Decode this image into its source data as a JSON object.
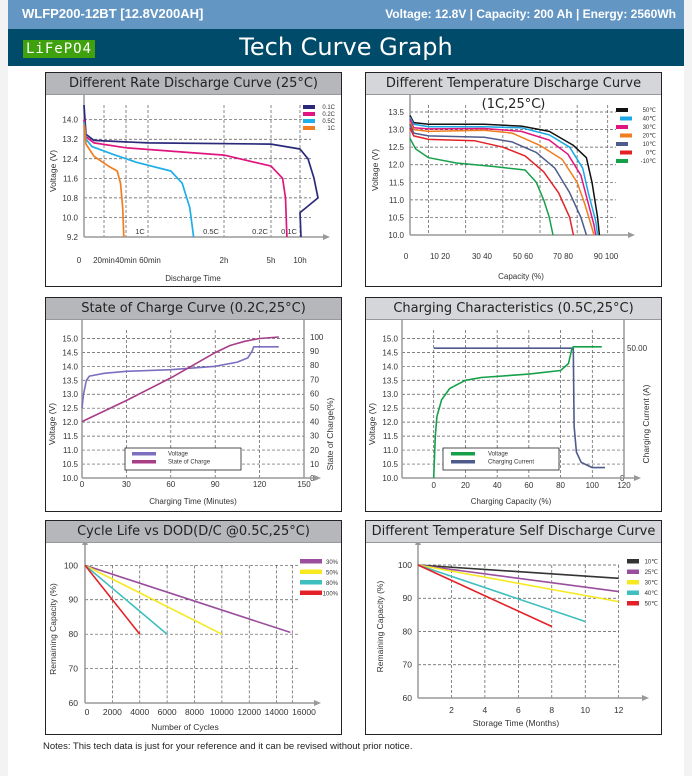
{
  "header": {
    "model": "WLFP200-12BT [12.8V200AH]",
    "specs": "Voltage: 12.8V |  Capacity: 200 Ah   |   Energy: 2560Wh",
    "badge": "LiFePO4",
    "title": "Tech Curve Graph"
  },
  "footer": {
    "note": "Notes: This tech data is just for your reference and it can be revised without prior notice."
  },
  "chart_data": [
    {
      "id": "rate",
      "type": "line",
      "title": "Different Rate Discharge Curve (25°C)",
      "xlabel": "Discharge Time",
      "ylabel": "Voltage (V)",
      "xticks": [
        "0",
        "20min",
        "40min",
        "60min",
        "2h",
        "5h",
        "10h"
      ],
      "yticks": [
        9.2,
        10.0,
        10.8,
        11.6,
        12.4,
        13.2,
        14.0
      ],
      "ylim": [
        9.2,
        14.6
      ],
      "grid": true,
      "legend": "top-right",
      "curve_labels": [
        "1C",
        "0.5C",
        "0.2C",
        "0.1C"
      ],
      "series": [
        {
          "name": "0.1C",
          "color": "#2b2a7a",
          "points": [
            [
              0,
              14.6
            ],
            [
              0.1,
              13.4
            ],
            [
              0.5,
              13.15
            ],
            [
              3,
              13.05
            ],
            [
              5,
              13.0
            ],
            [
              6,
              12.8
            ],
            [
              6.4,
              12.4
            ],
            [
              6.7,
              11.6
            ],
            [
              6.9,
              10.8
            ],
            [
              7.0,
              10.2
            ],
            [
              7.05,
              9.2
            ]
          ]
        },
        {
          "name": "0.2C",
          "color": "#e0157f",
          "points": [
            [
              0,
              14.0
            ],
            [
              0.1,
              13.3
            ],
            [
              0.5,
              13.05
            ],
            [
              2,
              12.85
            ],
            [
              4,
              12.55
            ],
            [
              5,
              12.1
            ],
            [
              5.4,
              11.6
            ],
            [
              5.5,
              10.8
            ],
            [
              5.55,
              9.2
            ]
          ]
        },
        {
          "name": "0.5C",
          "color": "#1eaee8",
          "points": [
            [
              0,
              13.9
            ],
            [
              0.1,
              13.2
            ],
            [
              0.4,
              12.9
            ],
            [
              1.5,
              12.55
            ],
            [
              2.5,
              12.25
            ],
            [
              3.3,
              11.9
            ],
            [
              3.45,
              11.4
            ],
            [
              3.55,
              10.4
            ],
            [
              3.6,
              9.2
            ]
          ]
        },
        {
          "name": "1C",
          "color": "#f07d1e",
          "points": [
            [
              0,
              13.8
            ],
            [
              0.1,
              13.0
            ],
            [
              0.5,
              12.5
            ],
            [
              1.2,
              12.1
            ],
            [
              1.6,
              11.9
            ],
            [
              1.75,
              11.4
            ],
            [
              1.85,
              10.4
            ],
            [
              1.9,
              9.2
            ]
          ]
        }
      ]
    },
    {
      "id": "temp",
      "type": "line",
      "title": "Different Temperature Discharge Curve (1C,25°C)",
      "xlabel": "Capacity (%)",
      "ylabel": "Voltage (V)",
      "xticks": [
        "0",
        "10 20",
        "30 40",
        "50 60",
        "70 80",
        "90 100"
      ],
      "yticks": [
        10.0,
        10.5,
        11.0,
        11.5,
        12.0,
        12.5,
        13.0,
        13.5
      ],
      "ylim": [
        10.0,
        13.7
      ],
      "xlim": [
        0,
        112
      ],
      "grid": true,
      "legend": "top-right",
      "series": [
        {
          "name": "50℃",
          "color": "#111111",
          "points": [
            [
              0,
              13.4
            ],
            [
              2,
              13.2
            ],
            [
              10,
              13.15
            ],
            [
              40,
              13.15
            ],
            [
              60,
              13.1
            ],
            [
              75,
              12.95
            ],
            [
              88,
              12.55
            ],
            [
              95,
              12.2
            ],
            [
              98,
              11.5
            ],
            [
              101,
              10.5
            ],
            [
              102,
              10.0
            ]
          ]
        },
        {
          "name": "40℃",
          "color": "#1aa8e6",
          "points": [
            [
              0,
              13.35
            ],
            [
              2,
              13.15
            ],
            [
              10,
              13.08
            ],
            [
              40,
              13.08
            ],
            [
              60,
              13.05
            ],
            [
              75,
              12.85
            ],
            [
              86,
              12.5
            ],
            [
              93,
              11.9
            ],
            [
              96,
              11.2
            ],
            [
              100,
              10.4
            ],
            [
              101,
              10.0
            ]
          ]
        },
        {
          "name": "30℃",
          "color": "#e0157f",
          "points": [
            [
              0,
              13.3
            ],
            [
              2,
              13.05
            ],
            [
              10,
              13.02
            ],
            [
              40,
              13.03
            ],
            [
              60,
              12.95
            ],
            [
              75,
              12.7
            ],
            [
              85,
              12.3
            ],
            [
              92,
              11.7
            ],
            [
              96,
              10.9
            ],
            [
              99,
              10.3
            ],
            [
              100,
              10.0
            ]
          ]
        },
        {
          "name": "20℃",
          "color": "#f07d1e",
          "points": [
            [
              0,
              13.2
            ],
            [
              2,
              13.0
            ],
            [
              10,
              12.95
            ],
            [
              40,
              12.98
            ],
            [
              55,
              12.9
            ],
            [
              70,
              12.55
            ],
            [
              82,
              12.15
            ],
            [
              90,
              11.5
            ],
            [
              94,
              10.9
            ],
            [
              98,
              10.2
            ],
            [
              99,
              10.0
            ]
          ]
        },
        {
          "name": "10℃",
          "color": "#4e5b8c",
          "points": [
            [
              0,
              13.15
            ],
            [
              2,
              12.9
            ],
            [
              10,
              12.82
            ],
            [
              40,
              12.78
            ],
            [
              55,
              12.65
            ],
            [
              68,
              12.35
            ],
            [
              78,
              11.9
            ],
            [
              86,
              11.2
            ],
            [
              92,
              10.5
            ],
            [
              95,
              10.0
            ]
          ]
        },
        {
          "name": "0℃",
          "color": "#e42127",
          "points": [
            [
              0,
              13.05
            ],
            [
              2,
              12.82
            ],
            [
              10,
              12.72
            ],
            [
              35,
              12.68
            ],
            [
              50,
              12.5
            ],
            [
              62,
              12.25
            ],
            [
              72,
              11.8
            ],
            [
              80,
              11.2
            ],
            [
              86,
              10.5
            ],
            [
              88,
              10.0
            ]
          ]
        },
        {
          "name": "-10℃",
          "color": "#16a04a",
          "points": [
            [
              0,
              12.75
            ],
            [
              3,
              12.45
            ],
            [
              10,
              12.2
            ],
            [
              25,
              12.05
            ],
            [
              45,
              11.95
            ],
            [
              62,
              11.85
            ],
            [
              68,
              11.5
            ],
            [
              72,
              11.0
            ],
            [
              75,
              10.5
            ],
            [
              77,
              10.0
            ]
          ]
        }
      ]
    },
    {
      "id": "soc",
      "type": "line",
      "title": "State of Charge Curve (0.2C,25°C)",
      "xlabel": "Charging Time (Minutes)",
      "ylabel": "Voltage (V)",
      "y2label": "State of Charge(%)",
      "xticks": [
        0,
        30,
        60,
        90,
        120,
        150
      ],
      "yticks": [
        10.0,
        10.5,
        11.0,
        11.5,
        12.0,
        12.5,
        13.0,
        13.5,
        14.0,
        14.5,
        15.0
      ],
      "y2ticks": [
        0,
        10,
        20,
        30,
        40,
        50,
        60,
        70,
        80,
        90,
        100
      ],
      "xlim": [
        0,
        150
      ],
      "ylim": [
        10.0,
        15.3
      ],
      "y2lim": [
        0,
        105
      ],
      "grid": true,
      "legend": "bottom-center",
      "series": [
        {
          "name": "Voltage",
          "axis": "y",
          "color": "#7b6fc0",
          "points": [
            [
              0,
              12.5
            ],
            [
              1,
              13.0
            ],
            [
              3,
              13.5
            ],
            [
              5,
              13.65
            ],
            [
              15,
              13.75
            ],
            [
              30,
              13.82
            ],
            [
              60,
              13.88
            ],
            [
              90,
              14.0
            ],
            [
              105,
              14.15
            ],
            [
              112,
              14.3
            ],
            [
              115,
              14.55
            ],
            [
              116,
              14.7
            ],
            [
              133,
              14.7
            ]
          ]
        },
        {
          "name": "State of Charge",
          "axis": "y2",
          "color": "#a83e88",
          "points": [
            [
              0,
              40
            ],
            [
              30,
              55
            ],
            [
              60,
              71
            ],
            [
              90,
              89
            ],
            [
              100,
              94
            ],
            [
              110,
              97
            ],
            [
              120,
              99
            ],
            [
              133,
              100
            ]
          ]
        }
      ]
    },
    {
      "id": "charging",
      "type": "line",
      "title": "Charging Characteristics (0.5C,25°C)",
      "xlabel": "Charging Capacity (%)",
      "ylabel": "Voltage (V)",
      "y2label": "Charging Current (A)",
      "xticks": [
        0,
        20,
        40,
        60,
        80,
        100,
        120
      ],
      "yticks": [
        10.0,
        10.5,
        11.0,
        11.5,
        12.0,
        12.5,
        13.0,
        13.5,
        14.0,
        14.5,
        15.0
      ],
      "y2ticks": [
        "0",
        "50.00"
      ],
      "xlim": [
        -20,
        120
      ],
      "ylim": [
        10.0,
        15.3
      ],
      "y2lim": [
        0,
        57
      ],
      "grid": true,
      "legend": "bottom-center",
      "series": [
        {
          "name": "Voltage",
          "axis": "y",
          "color": "#16a04a",
          "points": [
            [
              0,
              10.0
            ],
            [
              1,
              11.5
            ],
            [
              2,
              12.2
            ],
            [
              5,
              12.8
            ],
            [
              10,
              13.2
            ],
            [
              20,
              13.5
            ],
            [
              30,
              13.6
            ],
            [
              60,
              13.72
            ],
            [
              80,
              13.85
            ],
            [
              85,
              14.1
            ],
            [
              87,
              14.6
            ],
            [
              88,
              14.7
            ],
            [
              106,
              14.7
            ]
          ]
        },
        {
          "name": "Charging Current",
          "axis": "y2",
          "color": "#4e5b8c",
          "points": [
            [
              0,
              50
            ],
            [
              88,
              50
            ],
            [
              88.5,
              20
            ],
            [
              90,
              10
            ],
            [
              93,
              6
            ],
            [
              100,
              4
            ],
            [
              108,
              4
            ]
          ]
        }
      ]
    },
    {
      "id": "cycle",
      "type": "line",
      "title": "Cycle Life vs DOD(D/C @0.5C,25°C)",
      "xlabel": "Number of Cycles",
      "ylabel": "Remaining Capacity (%)",
      "xticks": [
        0,
        2000,
        4000,
        6000,
        8000,
        10000,
        12000,
        14000,
        16000
      ],
      "yticks": [
        60,
        70,
        80,
        90,
        100
      ],
      "xlim": [
        0,
        16500
      ],
      "ylim": [
        60,
        103
      ],
      "grid": true,
      "legend": "top-right",
      "series": [
        {
          "name": "30%",
          "color": "#9b4e9e",
          "points": [
            [
              0,
              100
            ],
            [
              15000,
              80.5
            ]
          ]
        },
        {
          "name": "50%",
          "color": "#f7e920",
          "points": [
            [
              0,
              100
            ],
            [
              10000,
              80
            ]
          ]
        },
        {
          "name": "80%",
          "color": "#3fbfbf",
          "points": [
            [
              0,
              100
            ],
            [
              6000,
              80
            ]
          ]
        },
        {
          "name": "100%",
          "color": "#e42127",
          "points": [
            [
              0,
              100
            ],
            [
              4000,
              80
            ]
          ]
        }
      ]
    },
    {
      "id": "selfdischarge",
      "type": "line",
      "title": "Different Temperature Self Discharge Curve",
      "xlabel": "Storage Time (Months)",
      "ylabel": "Remaining Capacity (%)",
      "xticks": [
        2,
        4,
        6,
        8,
        10,
        12
      ],
      "yticks": [
        60,
        70,
        80,
        90,
        100
      ],
      "xlim": [
        0,
        13.5
      ],
      "ylim": [
        60,
        103
      ],
      "grid": true,
      "legend": "top-right",
      "series": [
        {
          "name": "10℃",
          "color": "#333333",
          "points": [
            [
              0,
              100
            ],
            [
              12,
              96
            ]
          ]
        },
        {
          "name": "25℃",
          "color": "#9b4e9e",
          "points": [
            [
              0,
              100
            ],
            [
              12,
              92
            ]
          ]
        },
        {
          "name": "30℃",
          "color": "#f7e920",
          "points": [
            [
              0,
              100
            ],
            [
              12,
              89
            ]
          ]
        },
        {
          "name": "40℃",
          "color": "#3fbfbf",
          "points": [
            [
              0,
              100
            ],
            [
              10,
              83
            ]
          ]
        },
        {
          "name": "50℃",
          "color": "#e42127",
          "points": [
            [
              0,
              100
            ],
            [
              8,
              81.5
            ]
          ]
        }
      ]
    }
  ]
}
